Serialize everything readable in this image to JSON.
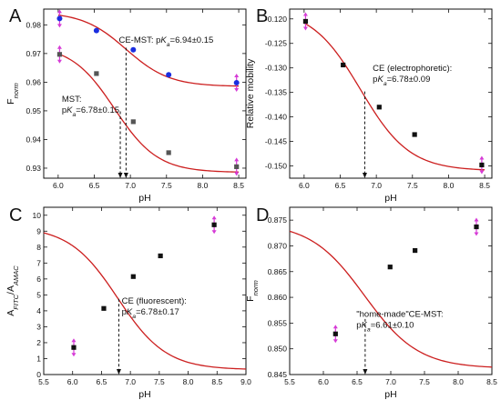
{
  "colors": {
    "fit": "#cc1f1f",
    "marker_black": "#111111",
    "marker_blue": "#1a2ee0",
    "marker_dark": "#555555",
    "errorbar": "#d63bd6"
  },
  "chart_data": [
    {
      "panel": "A",
      "type": "scatter",
      "xlabel": "pH",
      "ylabel": "F",
      "ylabel_sub": "norm",
      "xlim": [
        5.8,
        8.6
      ],
      "ylim": [
        0.9265,
        0.9855
      ],
      "xticks": [
        6.0,
        6.5,
        7.0,
        7.5,
        8.0,
        8.5
      ],
      "yticks": [
        0.93,
        0.94,
        0.95,
        0.96,
        0.97,
        0.98
      ],
      "x_decimals": 1,
      "y_decimals": 2,
      "series": [
        {
          "marker": "circle",
          "color": "#1a2ee0",
          "x": [
            6.02,
            6.53,
            7.04,
            7.53,
            8.47
          ],
          "y": [
            0.9822,
            0.978,
            0.9713,
            0.9626,
            0.9598
          ],
          "errorbars": [
            0,
            4
          ]
        },
        {
          "marker": "square",
          "color": "#555555",
          "x": [
            6.02,
            6.53,
            7.04,
            7.53,
            8.47
          ],
          "y": [
            0.9697,
            0.963,
            0.9462,
            0.9354,
            0.9305
          ],
          "errorbars": [
            0,
            4
          ]
        }
      ],
      "fits": [
        {
          "type": "sigmoid",
          "top": 0.9845,
          "bottom": 0.9585,
          "pKa": 6.94,
          "slope": 0.3,
          "x": [
            6.0,
            8.5
          ]
        },
        {
          "type": "sigmoid",
          "top": 0.973,
          "bottom": 0.9285,
          "pKa": 6.78,
          "slope": 0.3,
          "x": [
            6.0,
            8.5
          ]
        }
      ],
      "arrows": [
        {
          "x": 6.94,
          "y_from": 0.972,
          "y_to": 0.9265
        },
        {
          "x": 6.86,
          "y_from": 0.9498,
          "y_to": 0.9265
        }
      ],
      "annotations": [
        {
          "lines": [
            "CE-MST: pK|a|=6.94±0.15"
          ],
          "at": [
            6.84,
            0.9738
          ]
        },
        {
          "lines": [
            "MST:",
            "pK|a|=6.78±0.15"
          ],
          "at": [
            6.05,
            0.9532
          ]
        }
      ]
    },
    {
      "panel": "B",
      "type": "scatter",
      "xlabel": "pH",
      "ylabel": "Relative mobility",
      "ylabel_sub": "",
      "xlim": [
        5.8,
        8.6
      ],
      "ylim": [
        -0.1525,
        -0.118
      ],
      "xticks": [
        6.0,
        6.5,
        7.0,
        7.5,
        8.0,
        8.5
      ],
      "yticks": [
        -0.15,
        -0.145,
        -0.14,
        -0.135,
        -0.13,
        -0.125,
        -0.12
      ],
      "x_decimals": 1,
      "y_decimals": 3,
      "series": [
        {
          "marker": "square",
          "color": "#111111",
          "x": [
            6.02,
            6.54,
            7.04,
            7.53,
            8.46
          ],
          "y": [
            -0.1205,
            -0.1294,
            -0.138,
            -0.1436,
            -0.1498
          ],
          "errorbars": [
            0,
            4
          ]
        }
      ],
      "fits": [
        {
          "type": "sigmoid",
          "top": -0.1178,
          "bottom": -0.151,
          "pKa": 6.78,
          "slope": 0.34,
          "x": [
            6.0,
            8.5
          ]
        }
      ],
      "arrows": [
        {
          "x": 6.84,
          "y_from": -0.1348,
          "y_to": -0.1525
        }
      ],
      "annotations": [
        {
          "lines": [
            "CE (electrophoretic):",
            "pK|a|=6.78±0.09"
          ],
          "at": [
            6.95,
            -0.1306
          ]
        }
      ]
    },
    {
      "panel": "C",
      "type": "scatter",
      "xlabel": "pH",
      "ylabel": "A|FITC|/A|AMAC|",
      "ylabel_sub": "",
      "xlim": [
        5.5,
        9.0
      ],
      "ylim": [
        0,
        10.5
      ],
      "xticks": [
        5.5,
        6.0,
        6.5,
        7.0,
        7.5,
        8.0,
        8.5,
        9.0
      ],
      "yticks": [
        0,
        1,
        2,
        3,
        4,
        5,
        6,
        7,
        8,
        9,
        10
      ],
      "x_decimals": 1,
      "y_decimals": 0,
      "series": [
        {
          "marker": "square",
          "color": "#111111",
          "x": [
            6.02,
            6.54,
            7.05,
            7.52,
            8.45
          ],
          "y": [
            1.7,
            4.15,
            6.15,
            7.45,
            9.4
          ],
          "errorbars": [
            0,
            4
          ]
        }
      ],
      "fits": [
        {
          "type": "sigmoid",
          "top": 9.3,
          "bottom": 0.3,
          "pKa": 6.78,
          "slope": 0.42,
          "x": [
            5.5,
            9.0
          ]
        }
      ],
      "arrows": [
        {
          "x": 6.8,
          "y_from": 4.75,
          "y_to": 0
        }
      ],
      "annotations": [
        {
          "lines": [
            "CE (fluorescent):",
            "pK|a|=6.78±0.17"
          ],
          "at": [
            6.85,
            4.45
          ]
        }
      ]
    },
    {
      "panel": "D",
      "type": "scatter",
      "xlabel": "pH",
      "ylabel": "F",
      "ylabel_sub": "norm",
      "xlim": [
        5.5,
        8.5
      ],
      "ylim": [
        0.845,
        0.8775
      ],
      "xticks": [
        5.5,
        6.0,
        6.5,
        7.0,
        7.5,
        8.0,
        8.5
      ],
      "yticks": [
        0.845,
        0.85,
        0.855,
        0.86,
        0.865,
        0.87,
        0.875
      ],
      "x_decimals": 1,
      "y_decimals": 3,
      "series": [
        {
          "marker": "square",
          "color": "#111111",
          "x": [
            6.18,
            6.99,
            7.36,
            8.27
          ],
          "y": [
            0.8529,
            0.8659,
            0.8691,
            0.8737
          ],
          "errorbars": [
            0,
            3
          ]
        }
      ],
      "fits": [
        {
          "type": "sigmoid",
          "top": 0.8745,
          "bottom": 0.8462,
          "pKa": 6.61,
          "slope": 0.4,
          "x": [
            5.5,
            8.5
          ]
        }
      ],
      "arrows": [
        {
          "x": 6.62,
          "y_from": 0.8558,
          "y_to": 0.845
        }
      ],
      "annotations": [
        {
          "lines": [
            "\"home-made\"CE-MST:",
            "pK|a|=6.61±0.10"
          ],
          "at": [
            6.49,
            0.8562
          ]
        }
      ]
    }
  ]
}
